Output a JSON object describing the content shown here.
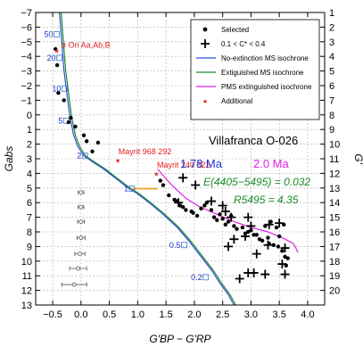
{
  "chart_data": {
    "type": "scatter",
    "title": "Villafranca O-026",
    "xlabel": "G'BP − G'RP",
    "ylabel_left": "Gabs",
    "ylabel_right": "G'",
    "xlim": [
      -0.8,
      4.3
    ],
    "ylim_left": [
      13,
      -7
    ],
    "ylim_right": [
      21,
      1
    ],
    "xticks": [
      "−0.5",
      "0.0",
      "0.5",
      "1.0",
      "1.5",
      "2.0",
      "2.5",
      "3.0",
      "3.5",
      "4.0"
    ],
    "yticks_left": [
      "13",
      "12",
      "11",
      "10",
      "9",
      "8",
      "7",
      "6",
      "5",
      "4",
      "3",
      "2",
      "1",
      "0",
      "−1",
      "−2",
      "−3",
      "−4",
      "−5",
      "−6",
      "−7"
    ],
    "yticks_right": [
      "1",
      "2",
      "3",
      "4",
      "5",
      "6",
      "7",
      "8",
      "9",
      "10",
      "11",
      "12",
      "13",
      "14",
      "15",
      "16",
      "17",
      "18",
      "19",
      "20"
    ],
    "grid": true,
    "legend_position": "top-right",
    "legend": [
      {
        "label": "Selected",
        "marker": "dot",
        "color": "#000000"
      },
      {
        "label": "0.1 < C* < 0.4",
        "marker": "plus",
        "color": "#000000"
      },
      {
        "label": "No-extinction MS isochrone",
        "marker": "line",
        "color": "#2b4fd8"
      },
      {
        "label": "Extiguished MS isochrone",
        "marker": "line",
        "color": "#1a8a2a"
      },
      {
        "label": "PMS extinguished isochrone",
        "marker": "line",
        "color": "#e020e0"
      },
      {
        "label": "Additional",
        "marker": "star",
        "color": "#e02020"
      }
    ],
    "annotations": {
      "age_blue": "1.78 Ma",
      "age_magenta": "2.0 Ma",
      "extinction": "E(4405−5495) = 0.032",
      "rv": "R5495 = 4.35",
      "star1": "σ Ori Aa,Ab,B",
      "star2": "Mayrit 968 292",
      "star3": "Mayrit 240 322"
    },
    "colors": {
      "no_extinction": "#2b4fd8",
      "extinguished": "#1a8a2a",
      "pms": "#e020e0",
      "link": "#f0a020",
      "additional": "#e02020",
      "mass_marker": "#3a7ad0"
    },
    "mass_labels": [
      {
        "label": "50",
        "x": -0.43,
        "y": -5.5
      },
      {
        "label": "20",
        "x": -0.38,
        "y": -3.9
      },
      {
        "label": "10",
        "x": -0.29,
        "y": -1.8
      },
      {
        "label": "5",
        "x": -0.26,
        "y": 0.4
      },
      {
        "label": "2",
        "x": 0.07,
        "y": 2.8
      },
      {
        "label": "1",
        "x": 0.9,
        "y": 5.05
      },
      {
        "label": "0.5",
        "x": 1.82,
        "y": 8.9
      },
      {
        "label": "0.2",
        "x": 2.2,
        "y": 11.1
      }
    ],
    "ms_no_ext": [
      [
        -0.38,
        -7
      ],
      [
        -0.34,
        -5.0
      ],
      [
        -0.3,
        -3.0
      ],
      [
        -0.25,
        -1.5
      ],
      [
        -0.2,
        0.0
      ],
      [
        -0.13,
        1.4
      ],
      [
        -0.05,
        2.2
      ],
      [
        0.05,
        2.8
      ],
      [
        0.2,
        3.2
      ],
      [
        0.4,
        3.7
      ],
      [
        0.6,
        4.3
      ],
      [
        0.8,
        4.9
      ],
      [
        1.0,
        5.4
      ],
      [
        1.2,
        6.0
      ],
      [
        1.45,
        6.8
      ],
      [
        1.7,
        7.7
      ],
      [
        1.9,
        8.6
      ],
      [
        2.1,
        9.6
      ],
      [
        2.3,
        10.6
      ],
      [
        2.45,
        11.5
      ],
      [
        2.6,
        12.3
      ],
      [
        2.7,
        13
      ]
    ],
    "ms_ext": [
      [
        -0.35,
        -7
      ],
      [
        -0.31,
        -5.0
      ],
      [
        -0.27,
        -3.0
      ],
      [
        -0.22,
        -1.5
      ],
      [
        -0.17,
        0.0
      ],
      [
        -0.1,
        1.4
      ],
      [
        -0.02,
        2.2
      ],
      [
        0.08,
        2.8
      ],
      [
        0.23,
        3.2
      ],
      [
        0.43,
        3.7
      ],
      [
        0.63,
        4.3
      ],
      [
        0.83,
        4.9
      ],
      [
        1.03,
        5.4
      ],
      [
        1.23,
        6.0
      ],
      [
        1.48,
        6.8
      ],
      [
        1.73,
        7.7
      ],
      [
        1.93,
        8.6
      ],
      [
        2.13,
        9.6
      ],
      [
        2.33,
        10.6
      ],
      [
        2.48,
        11.5
      ],
      [
        2.63,
        12.3
      ],
      [
        2.73,
        13
      ]
    ],
    "pms": [
      [
        1.35,
        3.7
      ],
      [
        1.6,
        4.8
      ],
      [
        1.85,
        5.7
      ],
      [
        2.1,
        6.3
      ],
      [
        2.4,
        6.8
      ],
      [
        2.7,
        7.3
      ],
      [
        3.0,
        7.7
      ],
      [
        3.3,
        8.0
      ],
      [
        3.55,
        8.4
      ],
      [
        3.75,
        8.8
      ],
      [
        3.83,
        9.4
      ]
    ],
    "link": [
      [
        0.88,
        5.05
      ],
      [
        1.35,
        5.05
      ]
    ],
    "selected": [
      [
        -0.45,
        -4.5
      ],
      [
        -0.42,
        -3.4
      ],
      [
        -0.4,
        -1.5
      ],
      [
        -0.3,
        -1.0
      ],
      [
        -0.22,
        0.5
      ],
      [
        -0.18,
        0.2
      ],
      [
        -0.1,
        0.8
      ],
      [
        0.05,
        1.4
      ],
      [
        0.1,
        1.8
      ],
      [
        0.2,
        2.5
      ],
      [
        0.3,
        1.9
      ],
      [
        1.4,
        4.5
      ],
      [
        1.45,
        4.8
      ],
      [
        1.55,
        5.5
      ],
      [
        1.65,
        5.8
      ],
      [
        1.7,
        5.9
      ],
      [
        1.75,
        6.2
      ],
      [
        1.8,
        6.3
      ],
      [
        1.85,
        6.5
      ],
      [
        1.95,
        6.6
      ],
      [
        1.98,
        6.7
      ],
      [
        2.05,
        6.9
      ],
      [
        2.12,
        6.4
      ],
      [
        2.18,
        6.2
      ],
      [
        2.22,
        6.0
      ],
      [
        2.3,
        6.5
      ],
      [
        2.35,
        7.0
      ],
      [
        2.4,
        7.2
      ],
      [
        2.45,
        6.8
      ],
      [
        2.5,
        7.1
      ],
      [
        2.55,
        7.5
      ],
      [
        2.6,
        7.3
      ],
      [
        2.65,
        6.9
      ],
      [
        2.7,
        7.6
      ],
      [
        2.75,
        7.8
      ],
      [
        2.85,
        7.7
      ],
      [
        2.9,
        8.1
      ],
      [
        2.95,
        8.0
      ],
      [
        3.0,
        7.9
      ],
      [
        3.05,
        8.2
      ],
      [
        3.1,
        8.2
      ],
      [
        3.15,
        8.5
      ],
      [
        3.2,
        8.6
      ],
      [
        3.25,
        7.6
      ],
      [
        3.3,
        8.4
      ],
      [
        3.32,
        8.8
      ],
      [
        3.35,
        7.3
      ],
      [
        3.4,
        8.9
      ],
      [
        3.45,
        7.7
      ],
      [
        3.48,
        9.0
      ],
      [
        3.5,
        8.3
      ],
      [
        3.55,
        9.3
      ],
      [
        3.58,
        7.5
      ],
      [
        3.6,
        9.7
      ],
      [
        3.62,
        10.3
      ],
      [
        3.65,
        9.8
      ]
    ],
    "crosses": [
      [
        1.8,
        4.3
      ],
      [
        2.02,
        4.8
      ],
      [
        1.72,
        6.0
      ],
      [
        2.3,
        5.9
      ],
      [
        2.5,
        6.2
      ],
      [
        2.55,
        6.6
      ],
      [
        2.65,
        7.0
      ],
      [
        2.95,
        7.0
      ],
      [
        3.0,
        7.6
      ],
      [
        3.32,
        7.5
      ],
      [
        3.5,
        7.4
      ],
      [
        2.7,
        8.5
      ],
      [
        2.6,
        9.0
      ],
      [
        2.9,
        8.3
      ],
      [
        3.3,
        8.9
      ],
      [
        3.6,
        9.1
      ],
      [
        3.1,
        9.5
      ],
      [
        3.05,
        10.8
      ],
      [
        2.95,
        10.8
      ],
      [
        3.25,
        10.9
      ],
      [
        3.6,
        10.9
      ],
      [
        3.55,
        10.2
      ],
      [
        2.8,
        11.2
      ]
    ],
    "additional": [
      [
        -0.43,
        -4.4
      ],
      [
        0.65,
        3.1
      ],
      [
        1.33,
        4.0
      ]
    ],
    "error_bars": [
      {
        "x": 0.0,
        "y": 5.3,
        "err": 0.05
      },
      {
        "x": 0.0,
        "y": 6.3,
        "err": 0.05
      },
      {
        "x": 0.0,
        "y": 7.3,
        "err": 0.06
      },
      {
        "x": 0.0,
        "y": 8.4,
        "err": 0.07
      },
      {
        "x": -0.02,
        "y": 9.5,
        "err": 0.09
      },
      {
        "x": -0.05,
        "y": 10.5,
        "err": 0.15
      },
      {
        "x": -0.12,
        "y": 11.6,
        "err": 0.22
      }
    ]
  }
}
